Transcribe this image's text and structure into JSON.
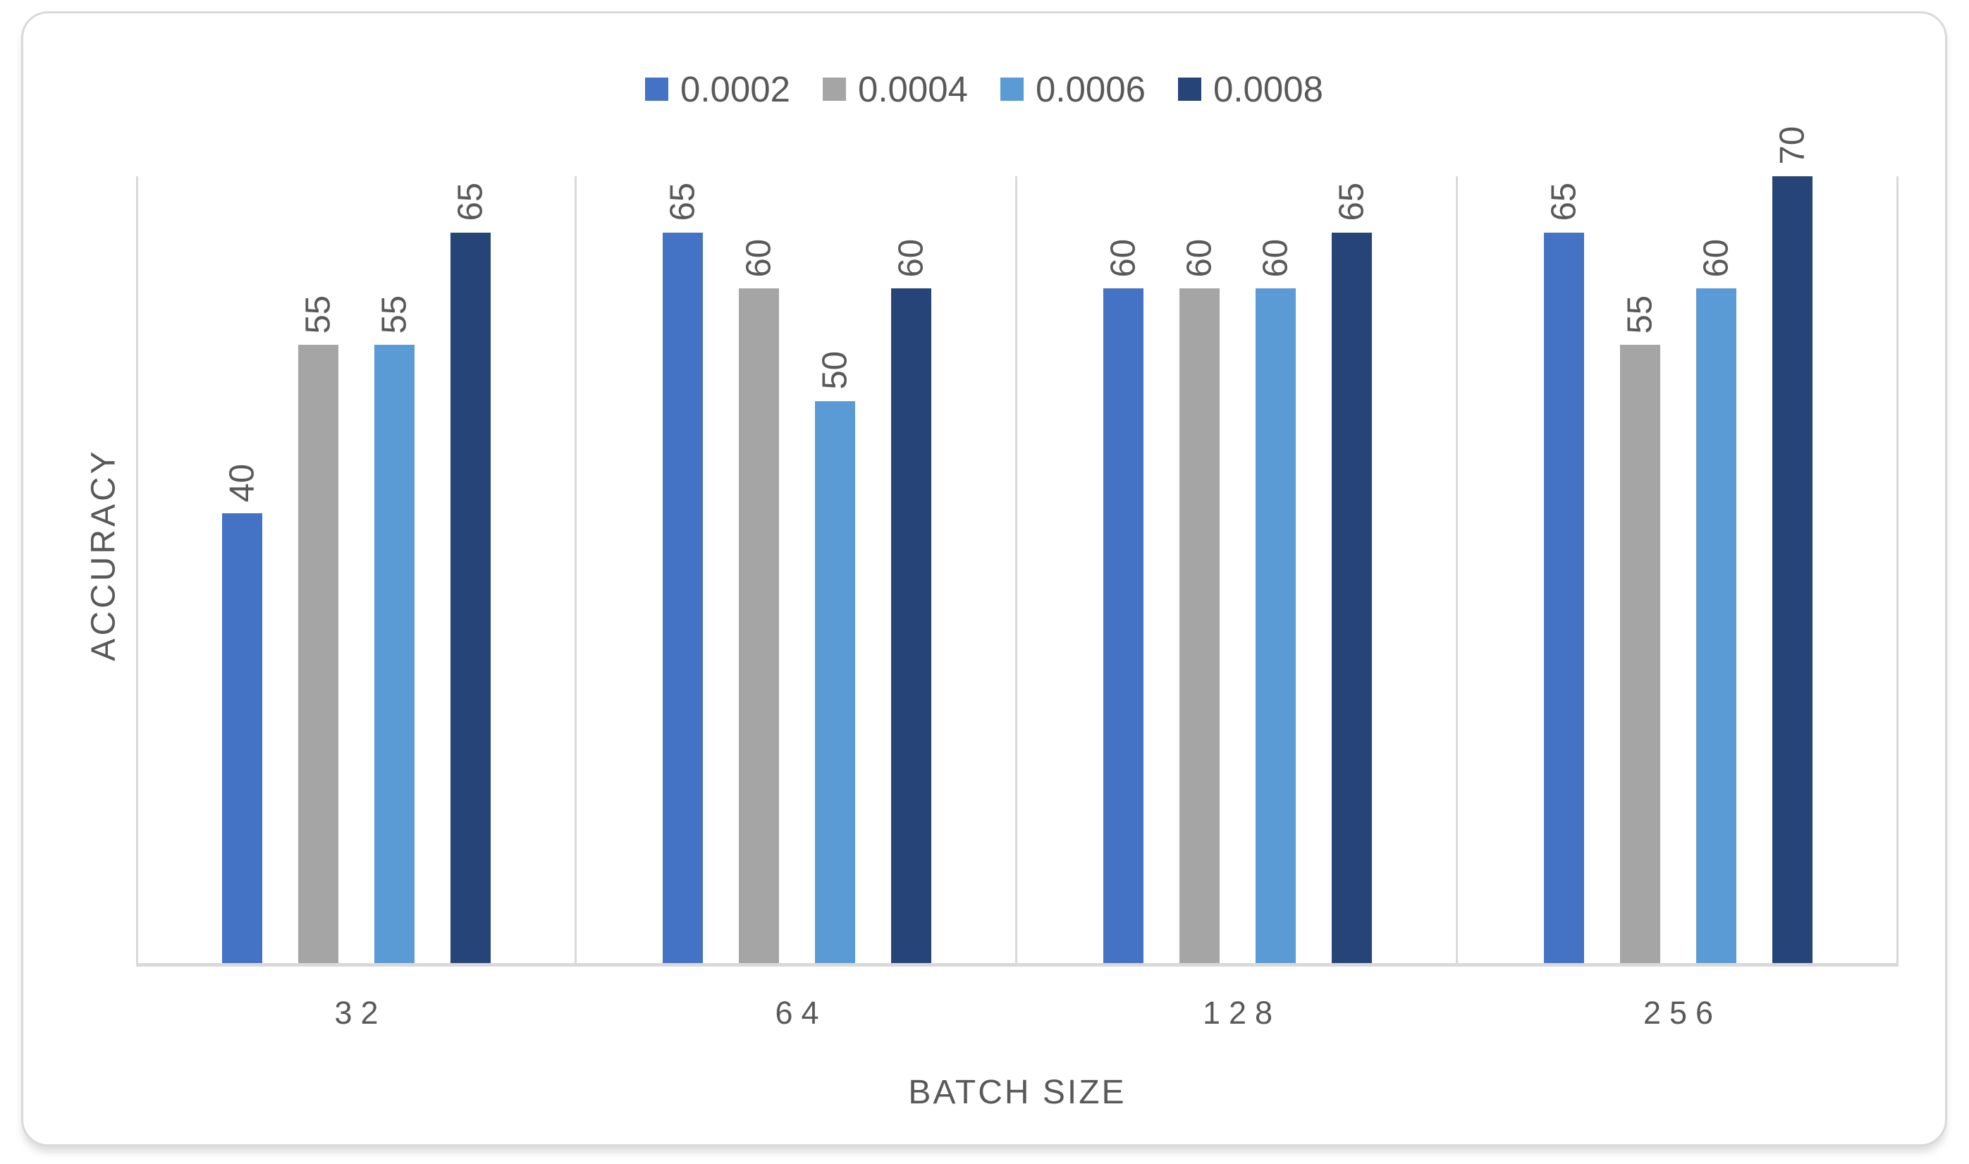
{
  "chart_data": {
    "type": "bar",
    "title": "",
    "xlabel": "BATCH SIZE",
    "ylabel": "ACCURACY",
    "categories": [
      "32",
      "64",
      "128",
      "256"
    ],
    "series": [
      {
        "name": "0.0002",
        "color": "#4472C4",
        "values": [
          40,
          65,
          60,
          65
        ]
      },
      {
        "name": "0.0004",
        "color": "#A5A5A5",
        "values": [
          55,
          60,
          60,
          55
        ]
      },
      {
        "name": "0.0006",
        "color": "#5B9BD5",
        "values": [
          55,
          50,
          60,
          60
        ]
      },
      {
        "name": "0.0008",
        "color": "#264478",
        "values": [
          65,
          60,
          65,
          70
        ]
      }
    ],
    "ylim": [
      0,
      70
    ],
    "legend_position": "top",
    "data_labels": {
      "visible": true,
      "rotation": "vertical-bottom-to-top"
    },
    "grid": {
      "horizontal": false,
      "category_separators": true
    },
    "axis_color": "#D9D9D9",
    "text_color": "#595959",
    "frame_border_color": "#D9D9D9"
  }
}
